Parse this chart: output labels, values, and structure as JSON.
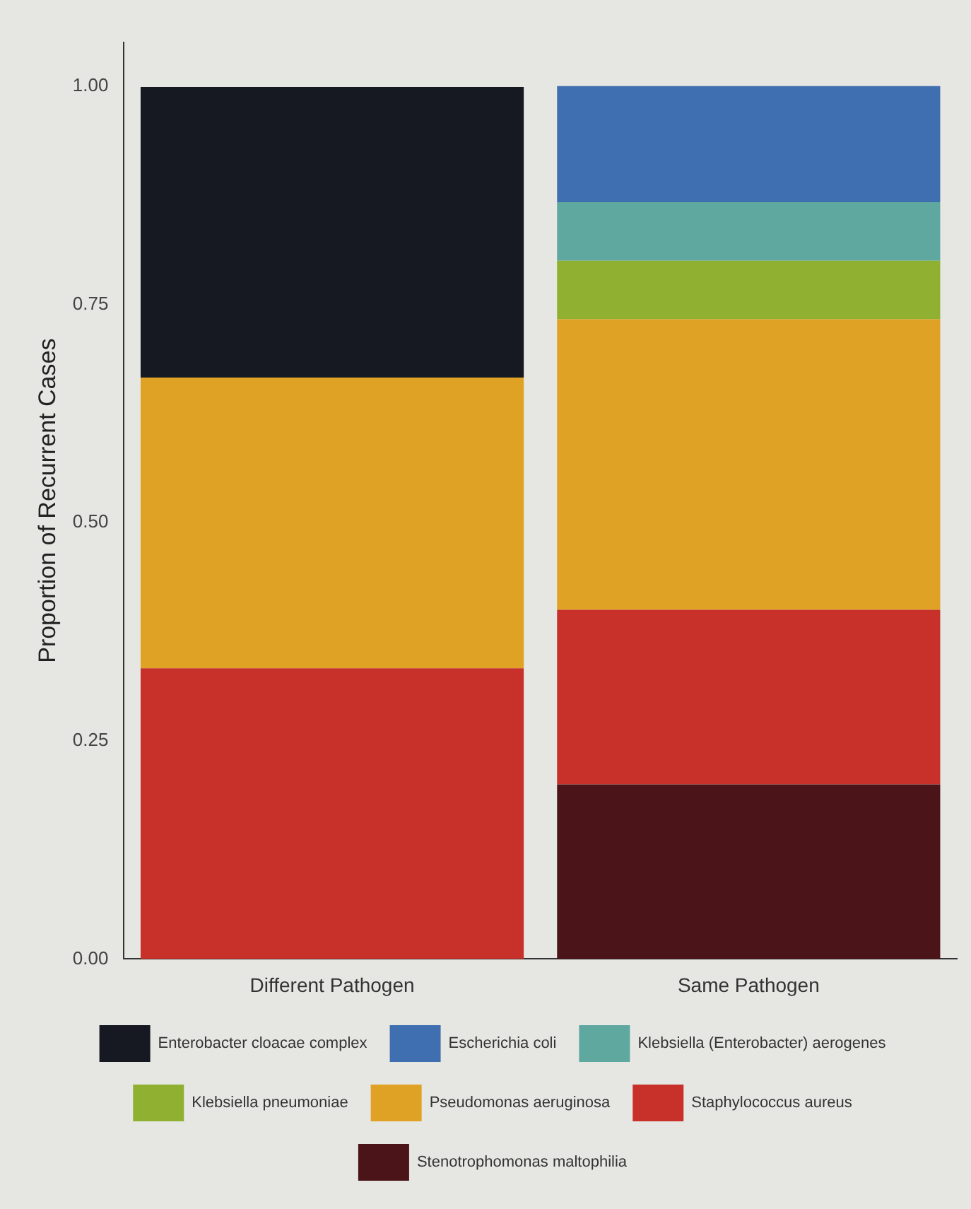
{
  "chart_data": {
    "type": "bar",
    "stacked": true,
    "ylabel": "Proportion of Recurrent Cases",
    "categories": [
      "Different Pathogen",
      "Same Pathogen"
    ],
    "series": [
      {
        "name": "Stenotrophomonas maltophilia",
        "color": "#4a1418",
        "values": [
          0,
          0.2
        ]
      },
      {
        "name": "Staphylococcus aureus",
        "color": "#c8302a",
        "values": [
          0.333,
          0.2
        ]
      },
      {
        "name": "Pseudomonas aeruginosa",
        "color": "#e0a224",
        "values": [
          0.333,
          0.333
        ]
      },
      {
        "name": "Klebsiella pneumoniae",
        "color": "#8fb030",
        "values": [
          0,
          0.067
        ]
      },
      {
        "name": "Klebsiella (Enterobacter) aerogenes",
        "color": "#5fa8a0",
        "values": [
          0,
          0.067
        ]
      },
      {
        "name": "Escherichia coli",
        "color": "#3f6fb0",
        "values": [
          0,
          0.133
        ]
      },
      {
        "name": "Enterobacter cloacae complex",
        "color": "#161922",
        "values": [
          0.333,
          0
        ]
      }
    ],
    "ylim": [
      0,
      1.05
    ],
    "yticks": [
      {
        "value": 0,
        "label": "0.00"
      },
      {
        "value": 0.25,
        "label": "0.25"
      },
      {
        "value": 0.5,
        "label": "0.50"
      },
      {
        "value": 0.75,
        "label": "0.75"
      },
      {
        "value": 1,
        "label": "1.00"
      }
    ],
    "grid": false,
    "legend": "bottom"
  }
}
